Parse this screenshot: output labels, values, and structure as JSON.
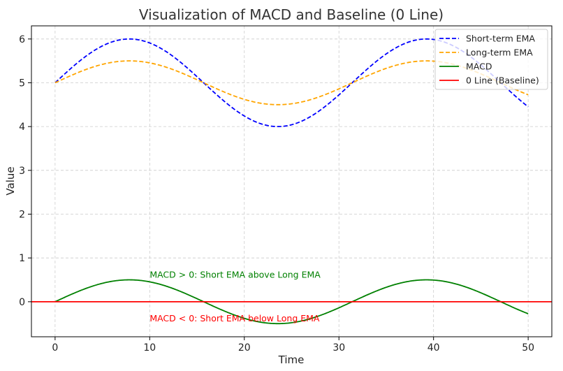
{
  "chart_data": {
    "type": "line",
    "title": "Visualization of MACD and Baseline (0 Line)",
    "xlabel": "Time",
    "ylabel": "Value",
    "xlim": [
      -2.5,
      52.5
    ],
    "ylim": [
      -0.8,
      6.3
    ],
    "x_ticks": [
      0,
      10,
      20,
      30,
      40,
      50
    ],
    "y_ticks": [
      0,
      1,
      2,
      3,
      4,
      5,
      6
    ],
    "grid": true,
    "legend_position": "top-right",
    "series": [
      {
        "name": "Short-term EMA",
        "style": "dashed",
        "color": "#0000ff",
        "offset": 5,
        "amplitude": 1,
        "period": 31.4
      },
      {
        "name": "Long-term EMA",
        "style": "dashed",
        "color": "#ffa500",
        "offset": 5,
        "amplitude": 0.5,
        "period": 31.4
      },
      {
        "name": "MACD",
        "style": "solid",
        "color": "#008000",
        "offset": 0,
        "amplitude": 0.5,
        "period": 31.4
      },
      {
        "name": "0 Line (Baseline)",
        "style": "solid",
        "color": "#ff0000",
        "constant": 0
      }
    ],
    "x_range": [
      0,
      50
    ],
    "annotations": [
      {
        "text": "MACD > 0: Short EMA above Long EMA",
        "x": 10,
        "y": 0.55,
        "color": "#008000"
      },
      {
        "text": "MACD < 0: Short EMA below Long EMA",
        "x": 10,
        "y": -0.45,
        "color": "#ff0000"
      }
    ]
  }
}
